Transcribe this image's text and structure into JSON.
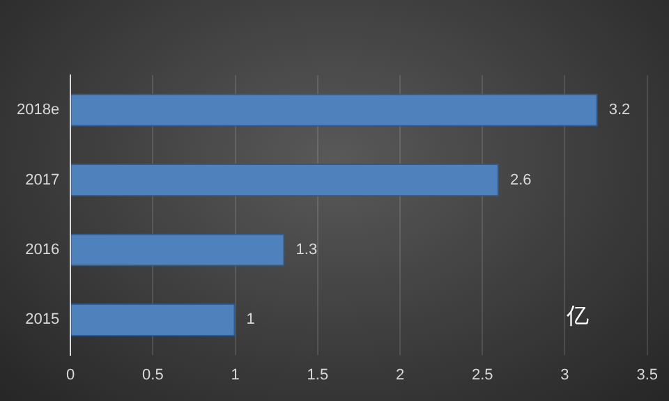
{
  "chart_data": {
    "type": "bar",
    "orientation": "horizontal",
    "categories": [
      "2018e",
      "2017",
      "2016",
      "2015"
    ],
    "values": [
      3.2,
      2.6,
      1.3,
      1
    ],
    "color": "#4f81bd",
    "xlim": [
      0,
      3.5
    ],
    "xticks": [
      0,
      0.5,
      1,
      1.5,
      2,
      2.5,
      3,
      3.5
    ],
    "grid": "x",
    "data_labels": true,
    "legend": false,
    "annotations": [
      "亿"
    ]
  }
}
